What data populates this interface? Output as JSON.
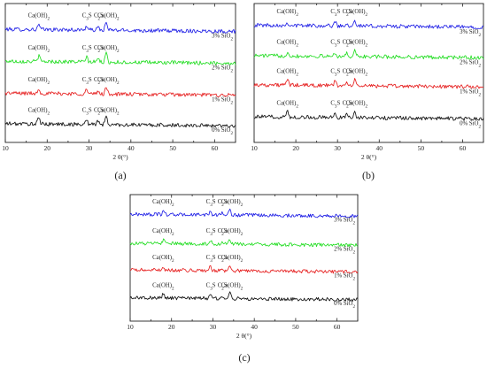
{
  "chart_data": [
    {
      "type": "line",
      "panel_label": "(a)",
      "xlabel": "2 θ(°)",
      "xlim": [
        10,
        65
      ],
      "x_ticks": [
        "10",
        "20",
        "30",
        "40",
        "50",
        "60"
      ],
      "series": [
        {
          "name": "3% SiO2",
          "color": "#1f1fe6",
          "baseline": 0.8,
          "peaks": [
            [
              18.0,
              0.035
            ],
            [
              29.4,
              0.03
            ],
            [
              32.2,
              0.02
            ],
            [
              34.1,
              0.055
            ]
          ],
          "annotations": [
            {
              "x": 18.0,
              "text": "Ca(OH)2"
            },
            {
              "x": 29.5,
              "text": "C3S"
            },
            {
              "x": 32.3,
              "text": "C2S"
            },
            {
              "x": 34.6,
              "text": "Ca(OH)2"
            }
          ]
        },
        {
          "name": "2% SiO2",
          "color": "#22dd22",
          "baseline": 0.57,
          "peaks": [
            [
              18.0,
              0.04
            ],
            [
              29.4,
              0.035
            ],
            [
              32.2,
              0.025
            ],
            [
              34.1,
              0.06
            ]
          ],
          "annotations": [
            {
              "x": 18.0,
              "text": "Ca(OH)2"
            },
            {
              "x": 29.5,
              "text": "C3S"
            },
            {
              "x": 32.3,
              "text": "C2S"
            },
            {
              "x": 34.6,
              "text": "Ca(OH)2"
            }
          ]
        },
        {
          "name": "1% SiO2",
          "color": "#e61f1f",
          "baseline": 0.34,
          "peaks": [
            [
              18.0,
              0.035
            ],
            [
              29.4,
              0.03
            ],
            [
              32.2,
              0.02
            ],
            [
              34.1,
              0.05
            ]
          ],
          "annotations": [
            {
              "x": 18.0,
              "text": "Ca(OH)2"
            },
            {
              "x": 29.5,
              "text": "C3S"
            },
            {
              "x": 32.3,
              "text": "C2S"
            },
            {
              "x": 34.6,
              "text": "Ca(OH)2"
            }
          ]
        },
        {
          "name": "0% SiO2",
          "color": "#111111",
          "baseline": 0.12,
          "peaks": [
            [
              18.0,
              0.045
            ],
            [
              29.4,
              0.035
            ],
            [
              32.2,
              0.03
            ],
            [
              34.1,
              0.055
            ]
          ],
          "annotations": [
            {
              "x": 18.0,
              "text": "Ca(OH)2"
            },
            {
              "x": 29.5,
              "text": "C3S"
            },
            {
              "x": 32.3,
              "text": "C2S"
            },
            {
              "x": 34.6,
              "text": "Ca(OH)2"
            }
          ]
        }
      ]
    },
    {
      "type": "line",
      "panel_label": "(b)",
      "xlabel": "2 θ(°)",
      "xlim": [
        10,
        65
      ],
      "x_ticks": [
        "10",
        "20",
        "30",
        "40",
        "50",
        "60"
      ],
      "series": [
        {
          "name": "3% SiO2",
          "color": "#1f1fe6",
          "baseline": 0.83,
          "peaks": [
            [
              18.0,
              0.02
            ],
            [
              29.4,
              0.03
            ],
            [
              32.2,
              0.02
            ],
            [
              34.1,
              0.05
            ]
          ],
          "annotations": [
            {
              "x": 18.0,
              "text": "Ca(OH)2"
            },
            {
              "x": 29.5,
              "text": "C3S"
            },
            {
              "x": 32.3,
              "text": "C2S"
            },
            {
              "x": 34.6,
              "text": "Ca(OH)2"
            }
          ]
        },
        {
          "name": "2% SiO2",
          "color": "#22dd22",
          "baseline": 0.61,
          "peaks": [
            [
              18.0,
              0.03
            ],
            [
              29.4,
              0.03
            ],
            [
              32.2,
              0.02
            ],
            [
              34.1,
              0.05
            ]
          ],
          "annotations": [
            {
              "x": 18.0,
              "text": "Ca(OH)2"
            },
            {
              "x": 29.5,
              "text": "C3S"
            },
            {
              "x": 32.3,
              "text": "C2S"
            },
            {
              "x": 34.6,
              "text": "Ca(OH)2"
            }
          ]
        },
        {
          "name": "1% SiO2",
          "color": "#e61f1f",
          "baseline": 0.4,
          "peaks": [
            [
              18.0,
              0.04
            ],
            [
              29.4,
              0.03
            ],
            [
              32.2,
              0.02
            ],
            [
              34.1,
              0.04
            ]
          ],
          "annotations": [
            {
              "x": 18.0,
              "text": "Ca(OH)2"
            },
            {
              "x": 29.5,
              "text": "C3S"
            },
            {
              "x": 32.3,
              "text": "C2S"
            },
            {
              "x": 34.6,
              "text": "Ca(OH)2"
            }
          ]
        },
        {
          "name": "0% SiO2",
          "color": "#111111",
          "baseline": 0.17,
          "peaks": [
            [
              18.0,
              0.04
            ],
            [
              29.4,
              0.035
            ],
            [
              32.2,
              0.03
            ],
            [
              34.1,
              0.05
            ]
          ],
          "annotations": [
            {
              "x": 18.0,
              "text": "Ca(OH)2"
            },
            {
              "x": 29.5,
              "text": "C3S"
            },
            {
              "x": 32.3,
              "text": "C2S"
            },
            {
              "x": 34.6,
              "text": "Ca(OH)2"
            }
          ]
        }
      ]
    },
    {
      "type": "line",
      "panel_label": "(c)",
      "xlabel": "2 θ(°)",
      "xlim": [
        10,
        65
      ],
      "x_ticks": [
        "10",
        "20",
        "30",
        "40",
        "50",
        "60"
      ],
      "series": [
        {
          "name": "3% SiO2",
          "color": "#1f1fe6",
          "baseline": 0.83,
          "peaks": [
            [
              18.0,
              0.03
            ],
            [
              29.4,
              0.03
            ],
            [
              32.2,
              0.02
            ],
            [
              34.1,
              0.04
            ]
          ],
          "annotations": [
            {
              "x": 18.0,
              "text": "Ca(OH)2"
            },
            {
              "x": 29.5,
              "text": "C3S"
            },
            {
              "x": 32.3,
              "text": "C2S"
            },
            {
              "x": 34.6,
              "text": "Ca(OH)2"
            }
          ]
        },
        {
          "name": "2% SiO2",
          "color": "#22dd22",
          "baseline": 0.6,
          "peaks": [
            [
              18.0,
              0.03
            ],
            [
              29.4,
              0.03
            ],
            [
              32.2,
              0.02
            ],
            [
              34.1,
              0.04
            ]
          ],
          "annotations": [
            {
              "x": 18.0,
              "text": "Ca(OH)2"
            },
            {
              "x": 29.5,
              "text": "C3S"
            },
            {
              "x": 32.3,
              "text": "C2S"
            },
            {
              "x": 34.6,
              "text": "Ca(OH)2"
            }
          ]
        },
        {
          "name": "1% SiO2",
          "color": "#e61f1f",
          "baseline": 0.39,
          "peaks": [
            [
              18.0,
              0.03
            ],
            [
              29.4,
              0.03
            ],
            [
              32.2,
              0.02
            ],
            [
              34.1,
              0.035
            ]
          ],
          "annotations": [
            {
              "x": 18.0,
              "text": "Ca(OH)2"
            },
            {
              "x": 29.5,
              "text": "C3S"
            },
            {
              "x": 32.3,
              "text": "C2S"
            },
            {
              "x": 34.6,
              "text": "Ca(OH)2"
            }
          ]
        },
        {
          "name": "0% SiO2",
          "color": "#111111",
          "baseline": 0.17,
          "peaks": [
            [
              18.0,
              0.035
            ],
            [
              29.4,
              0.03
            ],
            [
              32.2,
              0.025
            ],
            [
              34.1,
              0.04
            ]
          ],
          "annotations": [
            {
              "x": 18.0,
              "text": "Ca(OH)2"
            },
            {
              "x": 29.5,
              "text": "C3S"
            },
            {
              "x": 32.3,
              "text": "C2S"
            },
            {
              "x": 34.6,
              "text": "Ca(OH)2"
            }
          ]
        }
      ]
    }
  ]
}
